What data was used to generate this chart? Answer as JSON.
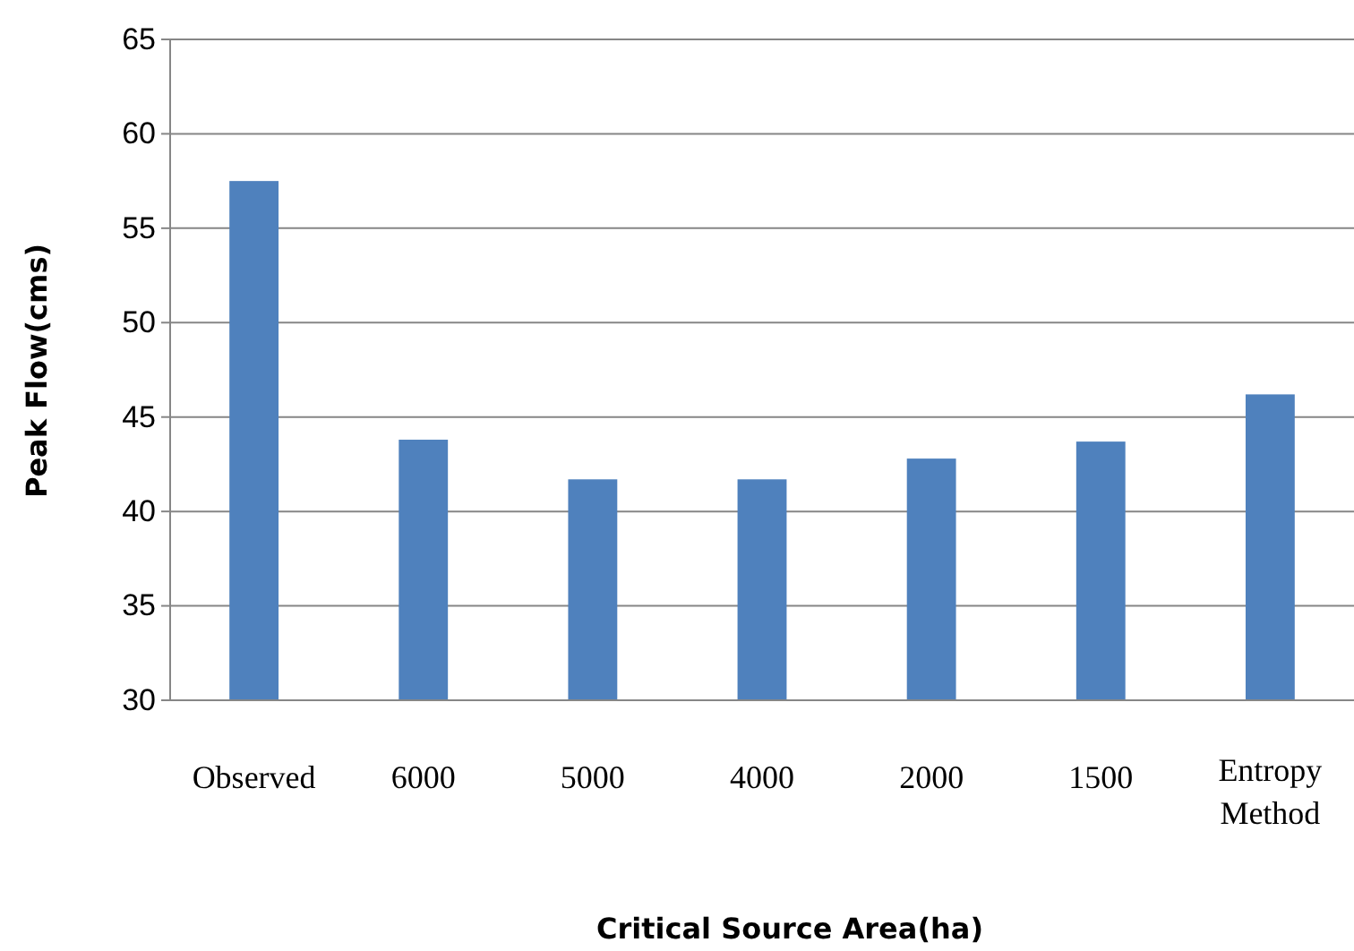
{
  "chart_data": {
    "type": "bar",
    "xlabel": "Critical Source Area(ha)",
    "ylabel": "Peak Flow(cms)",
    "categories": [
      "Observed",
      "6000",
      "5000",
      "4000",
      "2000",
      "1500",
      "Entropy Method"
    ],
    "values": [
      57.5,
      43.8,
      41.7,
      41.7,
      42.8,
      43.7,
      46.2
    ],
    "color": "#4f81bd",
    "ylim": [
      30,
      65
    ],
    "yticks": [
      30,
      35,
      40,
      45,
      50,
      55,
      60,
      65
    ],
    "grid": "y"
  }
}
